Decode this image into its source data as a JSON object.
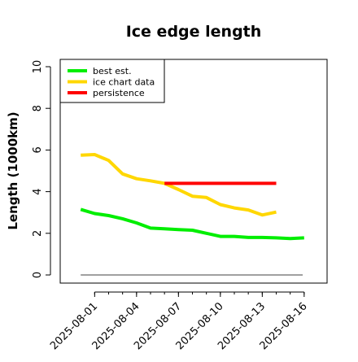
{
  "chart_data": {
    "type": "line",
    "title": "Ice edge length",
    "xlabel": "",
    "ylabel": "Length (1000km)",
    "ylim": [
      0,
      10
    ],
    "yticks": [
      0,
      2,
      4,
      6,
      8,
      10
    ],
    "xlim": [
      "2025-07-30",
      "2025-08-17"
    ],
    "xticks": [
      "2025-08-01",
      "2025-08-04",
      "2025-08-07",
      "2025-08-10",
      "2025-08-13",
      "2025-08-16"
    ],
    "grid": false,
    "legend_position": "top-left",
    "series": [
      {
        "name": "best est.",
        "color": "#00ee00",
        "x": [
          "2025-07-31",
          "2025-08-01",
          "2025-08-02",
          "2025-08-03",
          "2025-08-04",
          "2025-08-05",
          "2025-08-06",
          "2025-08-07",
          "2025-08-08",
          "2025-08-09",
          "2025-08-10",
          "2025-08-11",
          "2025-08-12",
          "2025-08-13",
          "2025-08-14",
          "2025-08-15",
          "2025-08-16"
        ],
        "y": [
          3.15,
          2.95,
          2.85,
          2.7,
          2.5,
          2.25,
          2.22,
          2.18,
          2.15,
          2.0,
          1.85,
          1.85,
          1.8,
          1.8,
          1.78,
          1.75,
          1.78
        ]
      },
      {
        "name": "ice chart data",
        "color": "#ffd700",
        "x": [
          "2025-07-31",
          "2025-08-01",
          "2025-08-02",
          "2025-08-03",
          "2025-08-04",
          "2025-08-05",
          "2025-08-06",
          "2025-08-07",
          "2025-08-08",
          "2025-08-09",
          "2025-08-10",
          "2025-08-11",
          "2025-08-12",
          "2025-08-13",
          "2025-08-14"
        ],
        "y": [
          5.75,
          5.78,
          5.5,
          4.85,
          4.62,
          4.52,
          4.4,
          4.1,
          3.78,
          3.72,
          3.38,
          3.22,
          3.12,
          2.88,
          3.02
        ]
      },
      {
        "name": "persistence",
        "color": "#ff0000",
        "x": [
          "2025-08-06",
          "2025-08-14"
        ],
        "y": [
          4.4,
          4.4
        ]
      }
    ],
    "reference_line": {
      "y": 0,
      "color": "#808080"
    }
  }
}
